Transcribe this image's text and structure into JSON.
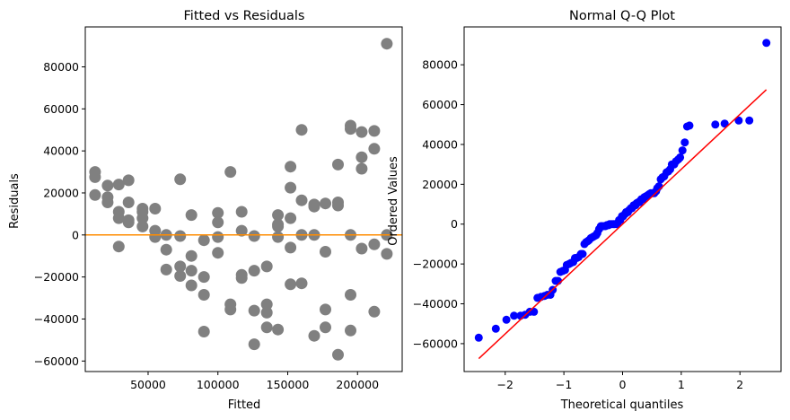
{
  "chart_data": [
    {
      "type": "scatter",
      "title": "Fitted vs Residuals",
      "xlabel": "Fitted",
      "ylabel": "Residuals",
      "xlim": [
        5000,
        232000
      ],
      "ylim": [
        -65000,
        99000
      ],
      "xticks": [
        50000,
        100000,
        150000,
        200000
      ],
      "xtick_labels": [
        "50000",
        "100000",
        "150000",
        "200000"
      ],
      "yticks": [
        -60000,
        -40000,
        -20000,
        0,
        20000,
        40000,
        60000,
        80000
      ],
      "ytick_labels": [
        "−60000",
        "−40000",
        "−20000",
        "0",
        "20000",
        "40000",
        "60000",
        "80000"
      ],
      "point_color": "#808080",
      "reference_line": {
        "y": 0,
        "color": "#ff8c00"
      },
      "grid": false,
      "points": [
        [
          12000,
          30000
        ],
        [
          12000,
          27500
        ],
        [
          12000,
          19000
        ],
        [
          21000,
          23500
        ],
        [
          21000,
          18000
        ],
        [
          21000,
          15500
        ],
        [
          29000,
          24000
        ],
        [
          29000,
          11000
        ],
        [
          29000,
          8000
        ],
        [
          29000,
          -5500
        ],
        [
          36000,
          26000
        ],
        [
          36000,
          15500
        ],
        [
          36000,
          7000
        ],
        [
          36000,
          6000
        ],
        [
          46000,
          12500
        ],
        [
          46000,
          11000
        ],
        [
          46000,
          8000
        ],
        [
          46000,
          4000
        ],
        [
          55000,
          12500
        ],
        [
          55000,
          2000
        ],
        [
          55000,
          -1000
        ],
        [
          63000,
          0
        ],
        [
          63000,
          -7000
        ],
        [
          63000,
          -16500
        ],
        [
          73000,
          26500
        ],
        [
          73000,
          -500
        ],
        [
          73000,
          -15000
        ],
        [
          73000,
          -19500
        ],
        [
          81000,
          9500
        ],
        [
          81000,
          -10000
        ],
        [
          81000,
          -17000
        ],
        [
          81000,
          -24000
        ],
        [
          90000,
          -2500
        ],
        [
          90000,
          -20000
        ],
        [
          90000,
          -28500
        ],
        [
          90000,
          -46000
        ],
        [
          100000,
          10500
        ],
        [
          100000,
          6000
        ],
        [
          100000,
          -1000
        ],
        [
          100000,
          -8500
        ],
        [
          109000,
          30000
        ],
        [
          109000,
          -33000
        ],
        [
          109000,
          -35500
        ],
        [
          117000,
          11000
        ],
        [
          117000,
          2000
        ],
        [
          117000,
          -19000
        ],
        [
          117000,
          -20500
        ],
        [
          126000,
          -500
        ],
        [
          126000,
          -17000
        ],
        [
          126000,
          -36000
        ],
        [
          126000,
          -52000
        ],
        [
          135000,
          -15000
        ],
        [
          135000,
          -33000
        ],
        [
          135000,
          -37000
        ],
        [
          135000,
          -44000
        ],
        [
          143000,
          9500
        ],
        [
          143000,
          5000
        ],
        [
          143000,
          4000
        ],
        [
          143000,
          -1000
        ],
        [
          143000,
          -45000
        ],
        [
          152000,
          32500
        ],
        [
          152000,
          22500
        ],
        [
          152000,
          8000
        ],
        [
          152000,
          -6000
        ],
        [
          152000,
          -23500
        ],
        [
          160000,
          50000
        ],
        [
          160000,
          16500
        ],
        [
          160000,
          0
        ],
        [
          160000,
          -23000
        ],
        [
          169000,
          14500
        ],
        [
          169000,
          13500
        ],
        [
          169000,
          0
        ],
        [
          169000,
          -48000
        ],
        [
          177000,
          15000
        ],
        [
          177000,
          -8000
        ],
        [
          177000,
          -35500
        ],
        [
          177000,
          -44000
        ],
        [
          186000,
          33500
        ],
        [
          186000,
          15500
        ],
        [
          186000,
          14000
        ],
        [
          186000,
          -57000
        ],
        [
          195000,
          52000
        ],
        [
          195000,
          50500
        ],
        [
          195000,
          0
        ],
        [
          195000,
          -28500
        ],
        [
          195000,
          -45500
        ],
        [
          203000,
          49000
        ],
        [
          203000,
          37000
        ],
        [
          203000,
          31500
        ],
        [
          203000,
          -6500
        ],
        [
          212000,
          49500
        ],
        [
          212000,
          41000
        ],
        [
          212000,
          -4500
        ],
        [
          212000,
          -36500
        ],
        [
          221000,
          91000
        ],
        [
          221000,
          0
        ],
        [
          221000,
          -9000
        ]
      ]
    },
    {
      "type": "scatter",
      "title": "Normal Q-Q Plot",
      "xlabel": "Theoretical quantiles",
      "ylabel": "Ordered Values",
      "xlim": [
        -2.7,
        2.7
      ],
      "ylim": [
        -74000,
        99000
      ],
      "xticks": [
        -2,
        -1,
        0,
        1,
        2
      ],
      "xtick_labels": [
        "−2",
        "−1",
        "0",
        "1",
        "2"
      ],
      "yticks": [
        -60000,
        -40000,
        -20000,
        0,
        20000,
        40000,
        60000,
        80000
      ],
      "ytick_labels": [
        "−60000",
        "−40000",
        "−20000",
        "0",
        "20000",
        "40000",
        "60000",
        "80000"
      ],
      "point_color": "#0000ff",
      "fit_line": {
        "x": [
          -2.45,
          2.45
        ],
        "y": [
          -67500,
          67500
        ],
        "color": "#ff0000"
      },
      "grid": false,
      "points": [
        [
          -2.45,
          -57000
        ],
        [
          -2.16,
          -52500
        ],
        [
          -1.98,
          -48000
        ],
        [
          -1.85,
          -46000
        ],
        [
          -1.74,
          -46000
        ],
        [
          -1.66,
          -45500
        ],
        [
          -1.58,
          -44000
        ],
        [
          -1.51,
          -44000
        ],
        [
          -1.45,
          -37000
        ],
        [
          -1.39,
          -36500
        ],
        [
          -1.33,
          -36000
        ],
        [
          -1.28,
          -35500
        ],
        [
          -1.23,
          -35500
        ],
        [
          -1.19,
          -33000
        ],
        [
          -1.14,
          -28500
        ],
        [
          -1.1,
          -28500
        ],
        [
          -1.06,
          -24000
        ],
        [
          -1.02,
          -23500
        ],
        [
          -0.98,
          -23000
        ],
        [
          -0.95,
          -20500
        ],
        [
          -0.91,
          -20000
        ],
        [
          -0.88,
          -19500
        ],
        [
          -0.84,
          -19000
        ],
        [
          -0.81,
          -17000
        ],
        [
          -0.78,
          -17000
        ],
        [
          -0.75,
          -16500
        ],
        [
          -0.71,
          -15000
        ],
        [
          -0.68,
          -15000
        ],
        [
          -0.65,
          -10000
        ],
        [
          -0.62,
          -9000
        ],
        [
          -0.59,
          -8500
        ],
        [
          -0.57,
          -8000
        ],
        [
          -0.54,
          -7000
        ],
        [
          -0.51,
          -6500
        ],
        [
          -0.48,
          -6000
        ],
        [
          -0.45,
          -5500
        ],
        [
          -0.43,
          -4500
        ],
        [
          -0.4,
          -2500
        ],
        [
          -0.37,
          -1000
        ],
        [
          -0.35,
          -1000
        ],
        [
          -0.32,
          -1000
        ],
        [
          -0.29,
          -1000
        ],
        [
          -0.27,
          -500
        ],
        [
          -0.24,
          -500
        ],
        [
          -0.22,
          0
        ],
        [
          -0.19,
          0
        ],
        [
          -0.16,
          0
        ],
        [
          -0.14,
          0
        ],
        [
          -0.11,
          0
        ],
        [
          -0.09,
          0
        ],
        [
          -0.06,
          2000
        ],
        [
          -0.04,
          2000
        ],
        [
          -0.01,
          4000
        ],
        [
          0.01,
          4000
        ],
        [
          0.04,
          5000
        ],
        [
          0.06,
          6000
        ],
        [
          0.09,
          6000
        ],
        [
          0.11,
          7000
        ],
        [
          0.14,
          8000
        ],
        [
          0.16,
          8000
        ],
        [
          0.19,
          9500
        ],
        [
          0.22,
          9500
        ],
        [
          0.24,
          10500
        ],
        [
          0.27,
          11000
        ],
        [
          0.29,
          11000
        ],
        [
          0.32,
          12500
        ],
        [
          0.35,
          12500
        ],
        [
          0.37,
          13500
        ],
        [
          0.4,
          14000
        ],
        [
          0.43,
          14500
        ],
        [
          0.45,
          15000
        ],
        [
          0.48,
          15500
        ],
        [
          0.51,
          15500
        ],
        [
          0.54,
          15500
        ],
        [
          0.57,
          16500
        ],
        [
          0.59,
          18000
        ],
        [
          0.62,
          19000
        ],
        [
          0.65,
          22500
        ],
        [
          0.68,
          23500
        ],
        [
          0.71,
          24000
        ],
        [
          0.75,
          26000
        ],
        [
          0.78,
          26500
        ],
        [
          0.81,
          27500
        ],
        [
          0.84,
          30000
        ],
        [
          0.88,
          30000
        ],
        [
          0.91,
          31500
        ],
        [
          0.95,
          32500
        ],
        [
          0.98,
          33500
        ],
        [
          1.02,
          37000
        ],
        [
          1.06,
          41000
        ],
        [
          1.1,
          49000
        ],
        [
          1.14,
          49500
        ],
        [
          1.58,
          50000
        ],
        [
          1.74,
          50500
        ],
        [
          1.98,
          52000
        ],
        [
          2.16,
          52000
        ],
        [
          2.45,
          91000
        ]
      ]
    }
  ]
}
